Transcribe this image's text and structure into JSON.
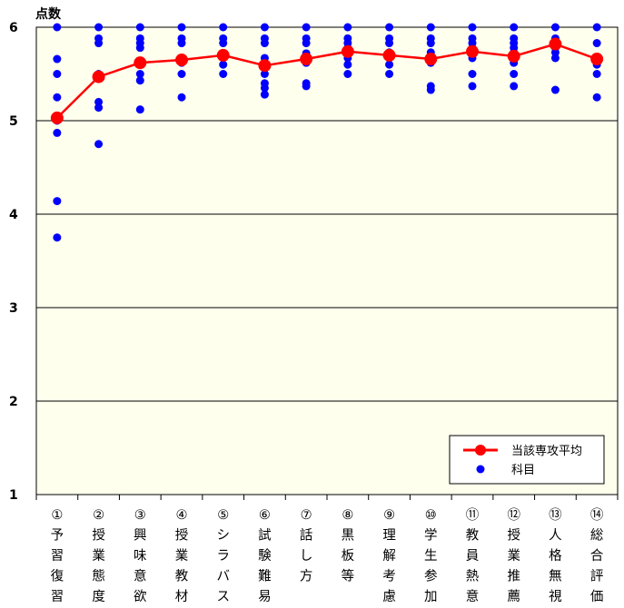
{
  "chart_data": {
    "type": "scatter",
    "title": "",
    "ylabel": "点数",
    "xlabel": "",
    "ylim": [
      1,
      6
    ],
    "yticks": [
      1,
      2,
      3,
      4,
      5,
      6
    ],
    "grid": true,
    "legend_position": "bottom-right",
    "categories": [
      "①予習復習",
      "②授業態度",
      "③興味意欲",
      "④授業教材",
      "⑤シラバス",
      "⑥試験難易",
      "⑦話し方",
      "⑧黒板等",
      "⑨理解考慮",
      "⑩学生参加",
      "⑪教員熱意",
      "⑫授業推薦",
      "⑬人格無視",
      "⑭総合評価"
    ],
    "series": [
      {
        "name": "当該専攻平均",
        "kind": "line",
        "color": "#ff0000",
        "values": [
          5.03,
          5.47,
          5.62,
          5.65,
          5.7,
          5.59,
          5.66,
          5.74,
          5.7,
          5.66,
          5.74,
          5.69,
          5.82,
          5.66
        ]
      },
      {
        "name": "科目",
        "kind": "scatter",
        "color": "#0000ff",
        "points": [
          [
            0,
            6.0
          ],
          [
            0,
            5.66
          ],
          [
            0,
            5.5
          ],
          [
            0,
            5.25
          ],
          [
            0,
            5.0
          ],
          [
            0,
            4.87
          ],
          [
            0,
            4.14
          ],
          [
            0,
            3.75
          ],
          [
            1,
            6.0
          ],
          [
            1,
            5.88
          ],
          [
            1,
            5.83
          ],
          [
            1,
            5.5
          ],
          [
            1,
            5.47
          ],
          [
            1,
            5.2
          ],
          [
            1,
            5.14
          ],
          [
            1,
            4.75
          ],
          [
            2,
            6.0
          ],
          [
            2,
            5.88
          ],
          [
            2,
            5.83
          ],
          [
            2,
            5.78
          ],
          [
            2,
            5.62
          ],
          [
            2,
            5.5
          ],
          [
            2,
            5.43
          ],
          [
            2,
            5.12
          ],
          [
            3,
            6.0
          ],
          [
            3,
            5.88
          ],
          [
            3,
            5.83
          ],
          [
            3,
            5.67
          ],
          [
            3,
            5.62
          ],
          [
            3,
            5.5
          ],
          [
            3,
            5.25
          ],
          [
            4,
            6.0
          ],
          [
            4,
            5.88
          ],
          [
            4,
            5.83
          ],
          [
            4,
            5.71
          ],
          [
            4,
            5.6
          ],
          [
            4,
            5.5
          ],
          [
            5,
            6.0
          ],
          [
            5,
            5.88
          ],
          [
            5,
            5.83
          ],
          [
            5,
            5.67
          ],
          [
            5,
            5.6
          ],
          [
            5,
            5.5
          ],
          [
            5,
            5.4
          ],
          [
            5,
            5.35
          ],
          [
            5,
            5.28
          ],
          [
            6,
            6.0
          ],
          [
            6,
            5.88
          ],
          [
            6,
            5.83
          ],
          [
            6,
            5.72
          ],
          [
            6,
            5.67
          ],
          [
            6,
            5.62
          ],
          [
            6,
            5.4
          ],
          [
            6,
            5.37
          ],
          [
            7,
            6.0
          ],
          [
            7,
            5.88
          ],
          [
            7,
            5.83
          ],
          [
            7,
            5.78
          ],
          [
            7,
            5.73
          ],
          [
            7,
            5.67
          ],
          [
            7,
            5.6
          ],
          [
            7,
            5.5
          ],
          [
            8,
            6.0
          ],
          [
            8,
            5.88
          ],
          [
            8,
            5.83
          ],
          [
            8,
            5.73
          ],
          [
            8,
            5.67
          ],
          [
            8,
            5.6
          ],
          [
            8,
            5.5
          ],
          [
            9,
            6.0
          ],
          [
            9,
            5.88
          ],
          [
            9,
            5.83
          ],
          [
            9,
            5.73
          ],
          [
            9,
            5.67
          ],
          [
            9,
            5.62
          ],
          [
            9,
            5.37
          ],
          [
            9,
            5.33
          ],
          [
            10,
            6.0
          ],
          [
            10,
            5.88
          ],
          [
            10,
            5.83
          ],
          [
            10,
            5.78
          ],
          [
            10,
            5.73
          ],
          [
            10,
            5.67
          ],
          [
            10,
            5.5
          ],
          [
            10,
            5.37
          ],
          [
            11,
            6.0
          ],
          [
            11,
            5.88
          ],
          [
            11,
            5.83
          ],
          [
            11,
            5.78
          ],
          [
            11,
            5.73
          ],
          [
            11,
            5.67
          ],
          [
            11,
            5.62
          ],
          [
            11,
            5.5
          ],
          [
            11,
            5.37
          ],
          [
            12,
            6.0
          ],
          [
            12,
            5.88
          ],
          [
            12,
            5.83
          ],
          [
            12,
            5.78
          ],
          [
            12,
            5.73
          ],
          [
            12,
            5.67
          ],
          [
            12,
            5.33
          ],
          [
            13,
            6.0
          ],
          [
            13,
            5.83
          ],
          [
            13,
            5.67
          ],
          [
            13,
            5.62
          ],
          [
            13,
            5.6
          ],
          [
            13,
            5.5
          ],
          [
            13,
            5.25
          ]
        ]
      }
    ],
    "colors": {
      "plot_background": "#ffffee",
      "average_line": "#ff0000",
      "subject_points": "#0000ff",
      "grid": "#000000"
    }
  }
}
